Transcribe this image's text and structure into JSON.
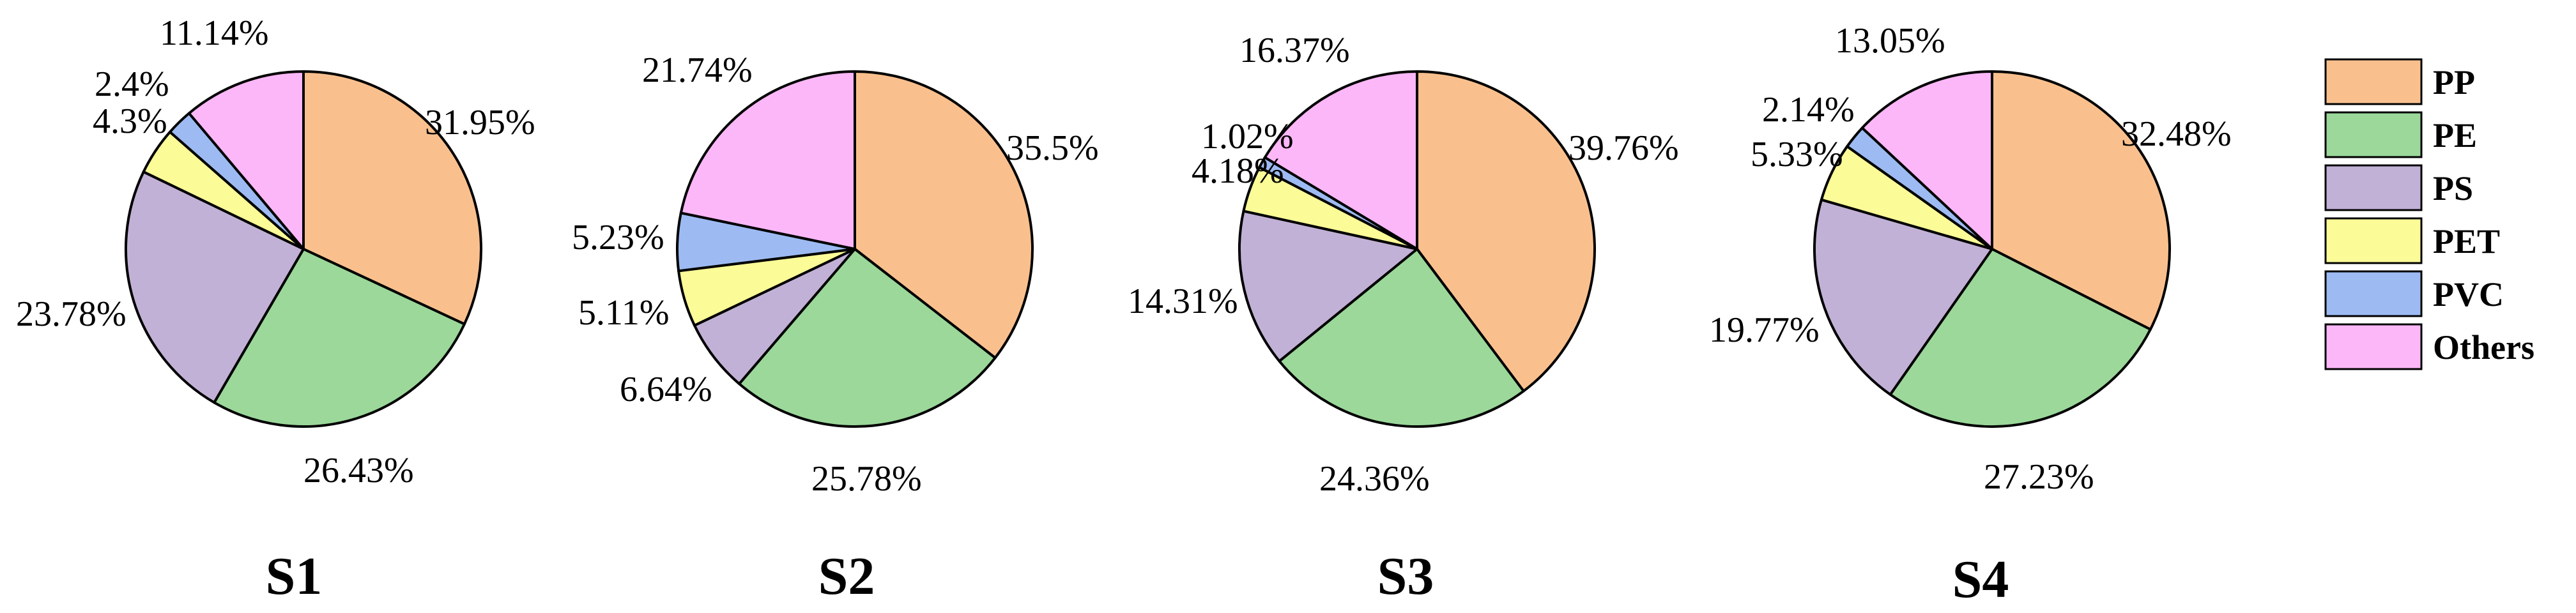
{
  "categories": [
    {
      "name": "PP",
      "color": "#F9C08E"
    },
    {
      "name": "PE",
      "color": "#9BD89A"
    },
    {
      "name": "PS",
      "color": "#C2B1D6"
    },
    {
      "name": "PET",
      "color": "#FBFB97"
    },
    {
      "name": "PVC",
      "color": "#9DBBF2"
    },
    {
      "name": "Others",
      "color": "#FBB7F7"
    }
  ],
  "chart_data": [
    {
      "type": "pie",
      "title": "S1",
      "categories": [
        "PP",
        "PE",
        "PS",
        "PET",
        "PVC",
        "Others"
      ],
      "values": [
        31.95,
        26.43,
        23.78,
        4.3,
        2.4,
        11.14
      ],
      "labels": [
        "31.95%",
        "26.43%",
        "23.78%",
        "4.3%",
        "2.4%",
        "11.14%"
      ]
    },
    {
      "type": "pie",
      "title": "S2",
      "categories": [
        "PP",
        "PE",
        "PS",
        "PET",
        "PVC",
        "Others"
      ],
      "values": [
        35.5,
        25.78,
        6.64,
        5.11,
        5.23,
        21.74
      ],
      "labels": [
        "35.5%",
        "25.78%",
        "6.64%",
        "5.11%",
        "5.23%",
        "21.74%"
      ]
    },
    {
      "type": "pie",
      "title": "S3",
      "categories": [
        "PP",
        "PE",
        "PS",
        "PET",
        "PVC",
        "Others"
      ],
      "values": [
        39.76,
        24.36,
        14.31,
        4.18,
        1.02,
        16.37
      ],
      "labels": [
        "39.76%",
        "24.36%",
        "14.31%",
        "4.18%",
        "1.02%",
        "16.37%"
      ]
    },
    {
      "type": "pie",
      "title": "S4",
      "categories": [
        "PP",
        "PE",
        "PS",
        "PET",
        "PVC",
        "Others"
      ],
      "values": [
        32.48,
        27.23,
        19.77,
        5.33,
        2.14,
        13.05
      ],
      "labels": [
        "32.48%",
        "27.23%",
        "19.77%",
        "5.33%",
        "2.14%",
        "13.05%"
      ]
    }
  ]
}
